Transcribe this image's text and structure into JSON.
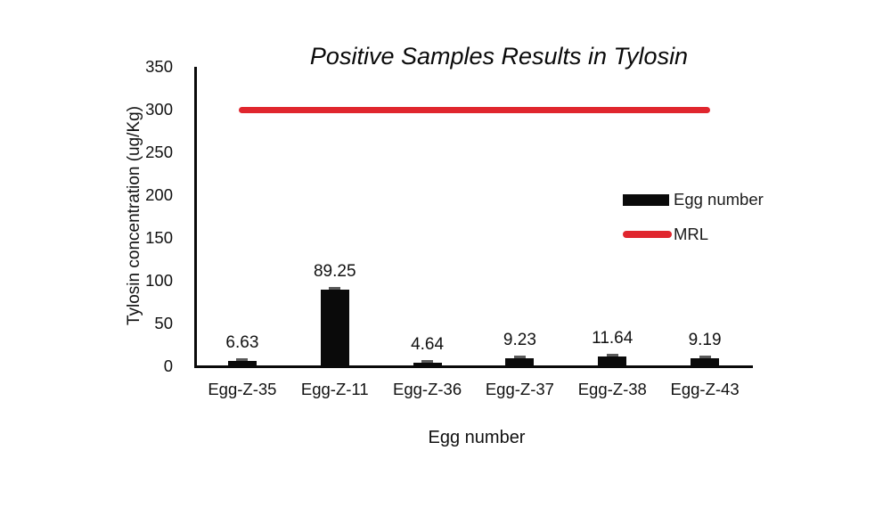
{
  "chart_data": {
    "type": "bar",
    "title": "Positive Samples Results in Tylosin",
    "xlabel": "Egg number",
    "ylabel": "Tylosin concentration (ug/Kg)",
    "categories": [
      "Egg-Z-35",
      "Egg-Z-11",
      "Egg-Z-36",
      "Egg-Z-37",
      "Egg-Z-38",
      "Egg-Z-43"
    ],
    "series": [
      {
        "name": "Egg number",
        "type": "bar",
        "color": "#0a0a0a",
        "values": [
          6.63,
          89.25,
          4.64,
          9.23,
          11.64,
          9.19
        ],
        "data_labels": [
          "6.63",
          "89.25",
          "4.64",
          "9.23",
          "11.64",
          "9.19"
        ],
        "error_caps": true
      },
      {
        "name": "MRL",
        "type": "line",
        "color": "#e0262e",
        "value": 300
      }
    ],
    "ylim": [
      0,
      350
    ],
    "yticks": [
      350,
      300,
      250,
      200,
      150,
      100,
      50,
      0
    ],
    "grid": false,
    "legend_position": "right",
    "colors": {
      "bar": "#0a0a0a",
      "mrl": "#e0262e",
      "error_cap": "#5a5a5a",
      "text": "#111111"
    }
  }
}
